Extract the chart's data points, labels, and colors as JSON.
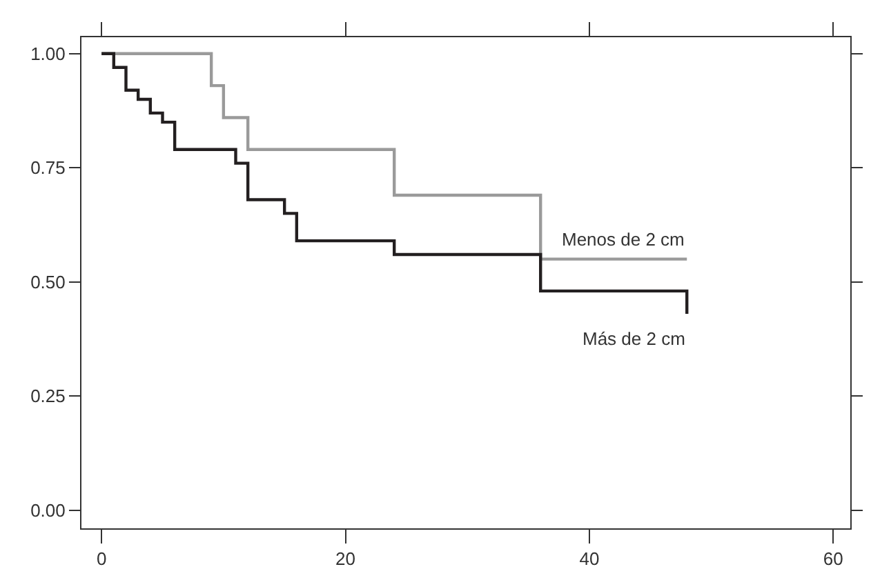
{
  "chart_data": {
    "type": "step",
    "series": [
      {
        "name": "Menos de 2 cm",
        "color": "#9a9a9a",
        "x": [
          0,
          9,
          10,
          12,
          24,
          36,
          48
        ],
        "values": [
          1,
          0.93,
          0.86,
          0.79,
          0.69,
          0.55,
          0.55
        ]
      },
      {
        "name": "Más de 2 cm",
        "color": "#231f20",
        "x": [
          0,
          1,
          2,
          3,
          4,
          5,
          6,
          11,
          12,
          15,
          16,
          24,
          36,
          48,
          48
        ],
        "values": [
          1,
          0.97,
          0.92,
          0.9,
          0.87,
          0.85,
          0.79,
          0.76,
          0.68,
          0.65,
          0.59,
          0.56,
          0.48,
          0.48,
          0.43
        ]
      }
    ],
    "xlim": [
      -1.65,
      61.4
    ],
    "xticks": [
      0,
      20,
      40,
      60
    ],
    "ylim": [
      -0.04,
      1.036
    ],
    "yticks": [
      {
        "value": 0,
        "label": "0.00"
      },
      {
        "value": 0.25,
        "label": "0.25"
      },
      {
        "value": 0.5,
        "label": "0.50"
      },
      {
        "value": 0.75,
        "label": "0.75"
      },
      {
        "value": 1,
        "label": "1.00"
      }
    ],
    "legend": false,
    "marker": "none",
    "line_style": "solid"
  }
}
